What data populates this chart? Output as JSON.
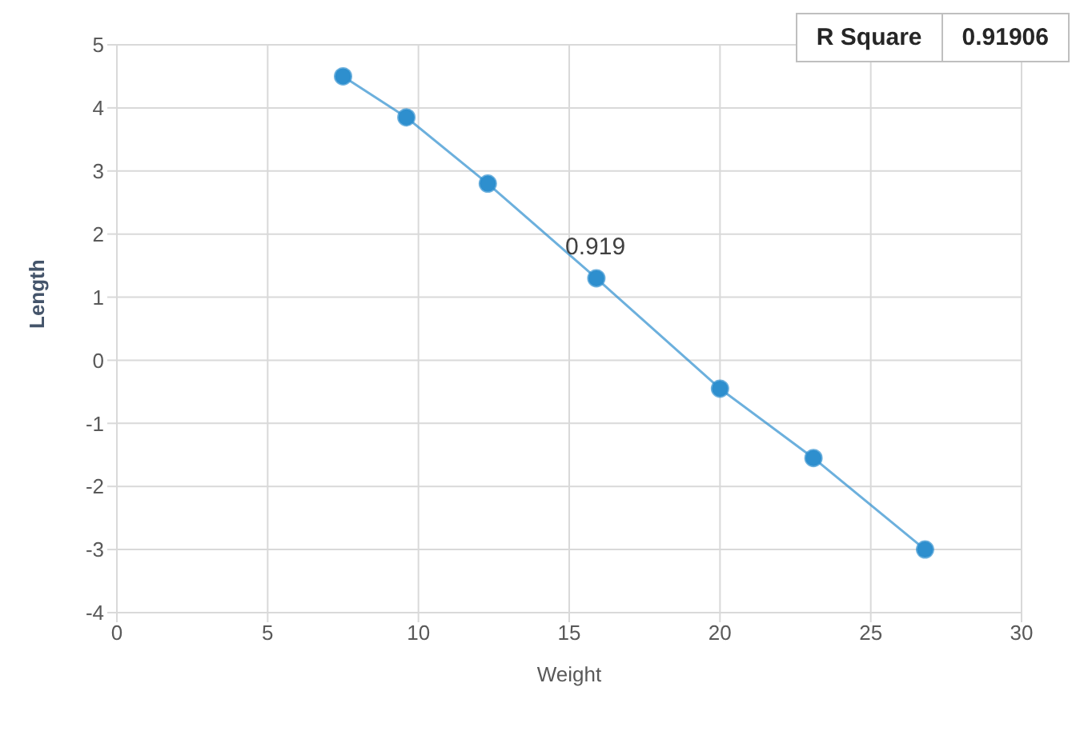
{
  "chart_data": {
    "type": "line",
    "xlabel": "Weight",
    "ylabel": "Length",
    "x": [
      7.5,
      9.6,
      12.3,
      15.9,
      20,
      23.1,
      26.8
    ],
    "series": [
      {
        "color": "#2e8fce",
        "values": [
          4.5,
          3.85,
          2.8,
          1.3,
          -0.45,
          -1.55,
          -3.0
        ]
      }
    ],
    "xlim": [
      0,
      30
    ],
    "xticks": [
      0,
      5,
      10,
      15,
      20,
      25,
      30
    ],
    "ylim": [
      -4,
      5
    ],
    "yticks": [
      -4,
      -3,
      -2,
      -1,
      0,
      1,
      2,
      3,
      4,
      5
    ],
    "grid": true,
    "marker": "circle",
    "line_style": "solid",
    "annotations": [
      "0.919",
      "R Square",
      "0.91906"
    ]
  }
}
